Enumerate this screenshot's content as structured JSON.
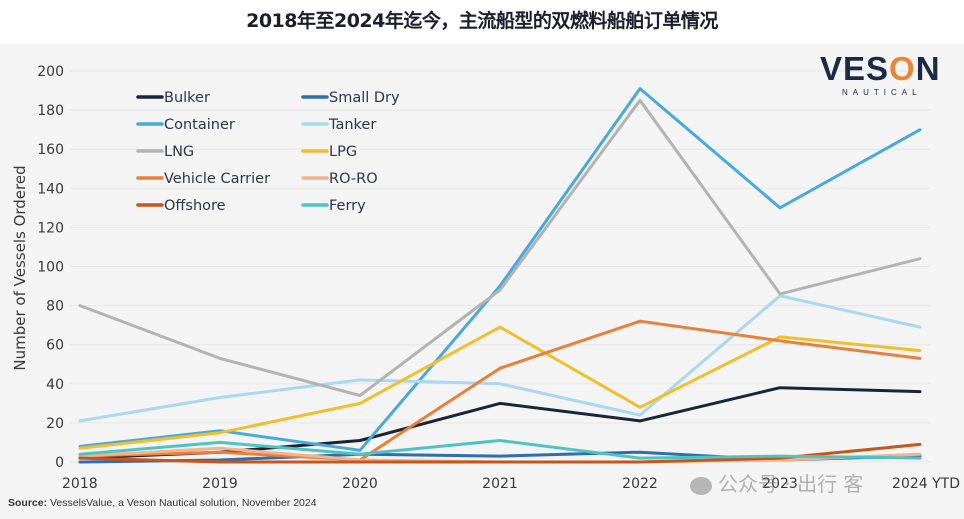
{
  "page": {
    "title": "2018年至2024年迄今，主流船型的双燃料船舶订单情况",
    "source_label": "Source:",
    "source_text": " VesselsValue, a Veson Nautical solution, November 2024",
    "logo_main_pre": "VES",
    "logo_main_o": "O",
    "logo_main_post": "N",
    "logo_sub": "NAUTICAL",
    "watermark": "公众号 · 出行 客"
  },
  "chart_data": {
    "type": "line",
    "title": "2018年至2024年迄今，主流船型的双燃料船舶订单情况",
    "xlabel": "",
    "ylabel": "Number of Vessels Ordered",
    "categories": [
      "2018",
      "2019",
      "2020",
      "2021",
      "2022",
      "2023",
      "2024 YTD"
    ],
    "ylim": [
      0,
      200
    ],
    "yticks": [
      0,
      20,
      40,
      60,
      80,
      100,
      120,
      140,
      160,
      180,
      200
    ],
    "grid": true,
    "legend_position": "top-left",
    "series": [
      {
        "name": "Bulker",
        "color": "#1b2436",
        "values": [
          2,
          5,
          11,
          30,
          21,
          38,
          36
        ]
      },
      {
        "name": "Small Dry",
        "color": "#2f6db0",
        "values": [
          0,
          1,
          4,
          3,
          5,
          1,
          3
        ]
      },
      {
        "name": "Container",
        "color": "#4aa9dc",
        "values": [
          8,
          16,
          6,
          90,
          191,
          130,
          170
        ]
      },
      {
        "name": "Tanker",
        "color": "#a9d8ef",
        "values": [
          21,
          33,
          42,
          40,
          24,
          85,
          69
        ]
      },
      {
        "name": "LNG",
        "color": "#b3b3b3",
        "values": [
          80,
          53,
          34,
          88,
          185,
          86,
          104
        ]
      },
      {
        "name": "LPG",
        "color": "#f0c02c",
        "values": [
          7,
          15,
          30,
          69,
          28,
          64,
          57
        ]
      },
      {
        "name": "Vehicle Carrier",
        "color": "#e8803a",
        "values": [
          3,
          5,
          1,
          48,
          72,
          62,
          53
        ]
      },
      {
        "name": "RO-RO",
        "color": "#f2b48c",
        "values": [
          3,
          7,
          1,
          0,
          0,
          1,
          4
        ]
      },
      {
        "name": "Offshore",
        "color": "#c5561c",
        "values": [
          2,
          0,
          0,
          0,
          0,
          2,
          9
        ]
      },
      {
        "name": "Ferry",
        "color": "#4fc3c4",
        "values": [
          4,
          10,
          4,
          11,
          2,
          3,
          2
        ]
      }
    ]
  }
}
